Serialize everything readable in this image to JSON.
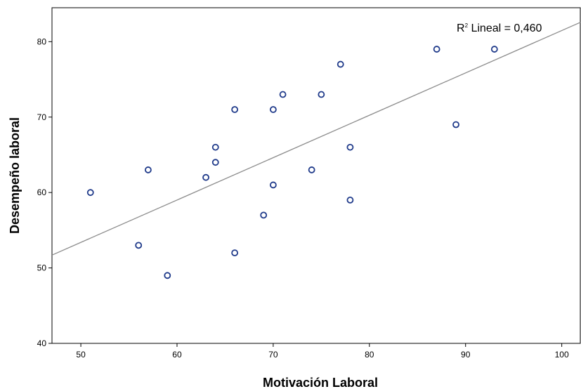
{
  "chart_data": {
    "type": "scatter",
    "title": "",
    "xlabel": "Motivación Laboral",
    "ylabel": "Desempeño laboral",
    "xlim": [
      47,
      102
    ],
    "ylim": [
      40,
      84.5
    ],
    "xticks": [
      50,
      60,
      70,
      80,
      90,
      100
    ],
    "yticks": [
      40,
      50,
      60,
      70,
      80
    ],
    "grid": false,
    "points": [
      {
        "x": 51,
        "y": 60
      },
      {
        "x": 56,
        "y": 53
      },
      {
        "x": 57,
        "y": 63
      },
      {
        "x": 59,
        "y": 49
      },
      {
        "x": 63,
        "y": 62
      },
      {
        "x": 64,
        "y": 66
      },
      {
        "x": 64,
        "y": 64
      },
      {
        "x": 66,
        "y": 71
      },
      {
        "x": 66,
        "y": 52
      },
      {
        "x": 69,
        "y": 57
      },
      {
        "x": 70,
        "y": 71
      },
      {
        "x": 70,
        "y": 61
      },
      {
        "x": 71,
        "y": 73
      },
      {
        "x": 74,
        "y": 63
      },
      {
        "x": 75,
        "y": 73
      },
      {
        "x": 77,
        "y": 77
      },
      {
        "x": 78,
        "y": 66
      },
      {
        "x": 78,
        "y": 59
      },
      {
        "x": 87,
        "y": 79
      },
      {
        "x": 89,
        "y": 69
      },
      {
        "x": 93,
        "y": 79
      }
    ],
    "fit_line": {
      "x": [
        47,
        102
      ],
      "y": [
        51.7,
        82.6
      ]
    },
    "annotation": {
      "r": "R",
      "sup": "2",
      "rest": " Lineal = 0,460"
    },
    "colors": {
      "marker": "#1f3a8a",
      "fit_line": "#8c8c8c",
      "axis": "#000000"
    }
  }
}
